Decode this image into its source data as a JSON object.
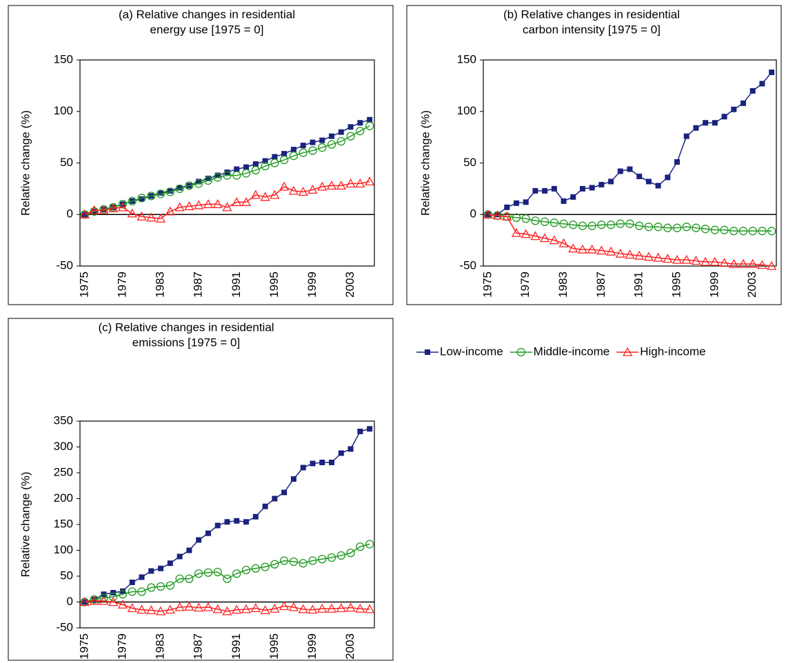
{
  "chart_data": [
    {
      "type": "line",
      "title": [
        "(a) Relative changes in residential",
        "energy use [1975 = 0]"
      ],
      "y_label": "Relative change (%)",
      "categories": [
        "1975",
        null,
        null,
        null,
        "1979",
        null,
        null,
        null,
        "1983",
        null,
        null,
        null,
        "1987",
        null,
        null,
        null,
        "1991",
        null,
        null,
        null,
        "1995",
        null,
        null,
        null,
        "1999",
        null,
        null,
        null,
        "2003",
        null,
        null
      ],
      "ylim": [
        -50,
        150
      ],
      "yticks": [
        -50,
        0,
        50,
        100,
        150
      ],
      "series": [
        {
          "name": "Low-income",
          "color": "#1a237e",
          "marker": "square",
          "values": [
            0,
            3,
            5,
            7,
            10,
            13,
            15,
            18,
            21,
            23,
            26,
            28,
            32,
            35,
            38,
            41,
            44,
            46,
            49,
            52,
            56,
            59,
            63,
            67,
            70,
            72,
            76,
            80,
            85,
            89,
            92
          ]
        },
        {
          "name": "Middle-income",
          "color": "#1f9a1f",
          "marker": "circle",
          "values": [
            0,
            3,
            5,
            7,
            10,
            13,
            16,
            18,
            20,
            22,
            25,
            28,
            30,
            33,
            36,
            38,
            38,
            40,
            43,
            47,
            50,
            53,
            57,
            60,
            62,
            65,
            68,
            71,
            76,
            81,
            86
          ]
        },
        {
          "name": "High-income",
          "color": "#ff2020",
          "marker": "triangle",
          "values": [
            0,
            4,
            4,
            6,
            7,
            1,
            -2,
            -3,
            -4,
            3,
            7,
            8,
            9,
            10,
            10,
            7,
            12,
            12,
            19,
            17,
            19,
            27,
            23,
            22,
            24,
            27,
            28,
            28,
            30,
            30,
            32
          ]
        }
      ]
    },
    {
      "type": "line",
      "title": [
        "(b) Relative changes in residential",
        "carbon intensity [1975 = 0]"
      ],
      "y_label": "Relative change (%)",
      "categories": [
        "1975",
        null,
        null,
        null,
        "1979",
        null,
        null,
        null,
        "1983",
        null,
        null,
        null,
        "1987",
        null,
        null,
        null,
        "1991",
        null,
        null,
        null,
        "1995",
        null,
        null,
        null,
        "1999",
        null,
        null,
        null,
        "2003",
        null,
        null
      ],
      "ylim": [
        -50,
        150
      ],
      "yticks": [
        -50,
        0,
        50,
        100,
        150
      ],
      "series": [
        {
          "color": "#1a237e",
          "marker": "square",
          "values": [
            0,
            0,
            7,
            11,
            12,
            23,
            23,
            25,
            13,
            17,
            25,
            26,
            29,
            32,
            42,
            44,
            37,
            32,
            28,
            36,
            51,
            76,
            84,
            89,
            89,
            95,
            102,
            108,
            120,
            127,
            138
          ]
        },
        {
          "color": "#1f9a1f",
          "marker": "circle",
          "values": [
            0,
            -1,
            -2,
            -3,
            -4,
            -6,
            -7,
            -8,
            -9,
            -10,
            -11,
            -11,
            -10,
            -10,
            -9,
            -9,
            -11,
            -12,
            -12,
            -13,
            -13,
            -12,
            -13,
            -14,
            -15,
            -15,
            -16,
            -16,
            -16,
            -16,
            -16
          ]
        },
        {
          "color": "#ff2020",
          "marker": "triangle",
          "values": [
            0,
            -1,
            -2,
            -18,
            -19,
            -21,
            -23,
            -25,
            -28,
            -33,
            -34,
            -34,
            -35,
            -36,
            -38,
            -39,
            -40,
            -41,
            -42,
            -43,
            -44,
            -44,
            -45,
            -46,
            -46,
            -47,
            -48,
            -48,
            -48,
            -49,
            -50
          ]
        }
      ]
    },
    {
      "type": "line",
      "title": [
        "(c) Relative changes in residential",
        "emissions [1975 = 0]"
      ],
      "y_label": "Relative change (%)",
      "categories": [
        "1975",
        null,
        null,
        null,
        "1979",
        null,
        null,
        null,
        "1983",
        null,
        null,
        null,
        "1987",
        null,
        null,
        null,
        "1991",
        null,
        null,
        null,
        "1995",
        null,
        null,
        null,
        "1999",
        null,
        null,
        null,
        "2003",
        null,
        null
      ],
      "ylim": [
        -50,
        350
      ],
      "yticks": [
        -50,
        0,
        50,
        100,
        150,
        200,
        250,
        300,
        350
      ],
      "series": [
        {
          "color": "#1a237e",
          "marker": "square",
          "values": [
            0,
            5,
            15,
            18,
            21,
            38,
            48,
            60,
            65,
            75,
            88,
            100,
            120,
            133,
            148,
            155,
            157,
            155,
            165,
            185,
            200,
            212,
            238,
            260,
            268,
            270,
            270,
            288,
            296,
            330,
            335
          ]
        },
        {
          "color": "#1f9a1f",
          "marker": "circle",
          "values": [
            0,
            5,
            8,
            10,
            15,
            20,
            20,
            28,
            30,
            32,
            45,
            45,
            55,
            57,
            58,
            45,
            55,
            62,
            65,
            68,
            73,
            80,
            78,
            75,
            80,
            83,
            86,
            90,
            95,
            107,
            112
          ]
        },
        {
          "color": "#ff2020",
          "marker": "triangle",
          "values": [
            0,
            2,
            2,
            0,
            -5,
            -12,
            -15,
            -16,
            -18,
            -15,
            -10,
            -9,
            -11,
            -10,
            -14,
            -18,
            -15,
            -14,
            -12,
            -16,
            -13,
            -8,
            -10,
            -14,
            -15,
            -13,
            -13,
            -12,
            -11,
            -13,
            -14
          ]
        }
      ]
    }
  ]
}
